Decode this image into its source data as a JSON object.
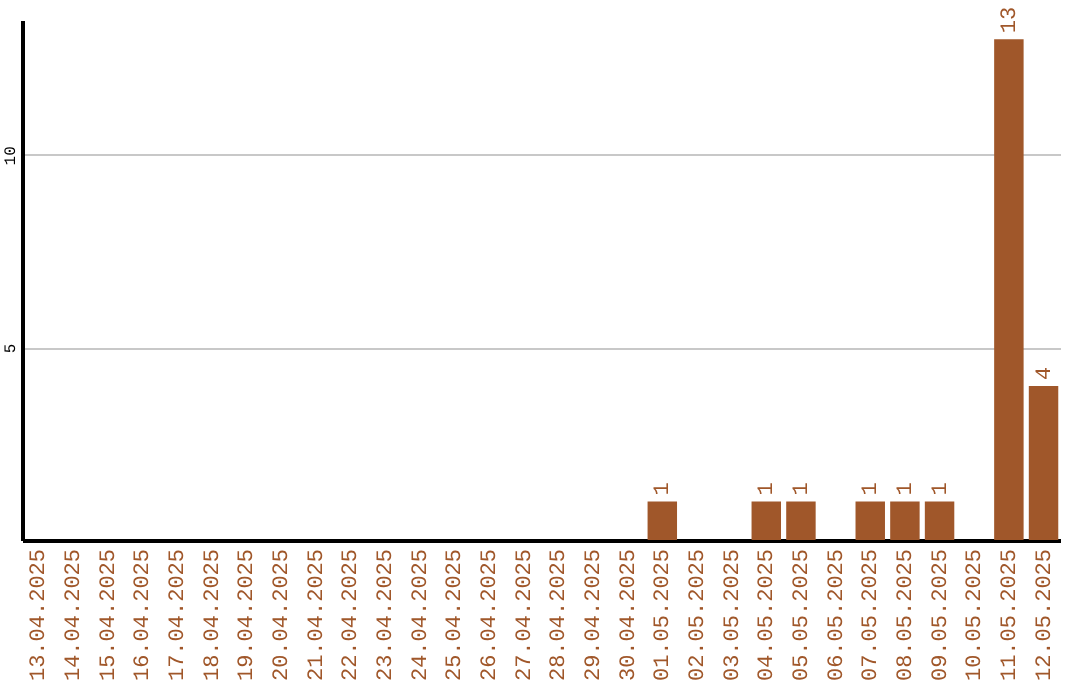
{
  "chart_data": {
    "type": "bar",
    "categories": [
      "13.04.2025",
      "14.04.2025",
      "15.04.2025",
      "16.04.2025",
      "17.04.2025",
      "18.04.2025",
      "19.04.2025",
      "20.04.2025",
      "21.04.2025",
      "22.04.2025",
      "23.04.2025",
      "24.04.2025",
      "25.04.2025",
      "26.04.2025",
      "27.04.2025",
      "28.04.2025",
      "29.04.2025",
      "30.04.2025",
      "01.05.2025",
      "02.05.2025",
      "03.05.2025",
      "04.05.2025",
      "05.05.2025",
      "06.05.2025",
      "07.05.2025",
      "08.05.2025",
      "09.05.2025",
      "10.05.2025",
      "11.05.2025",
      "12.05.2025"
    ],
    "values": [
      0,
      0,
      0,
      0,
      0,
      0,
      0,
      0,
      0,
      0,
      0,
      0,
      0,
      0,
      0,
      0,
      0,
      0,
      1,
      0,
      0,
      1,
      1,
      0,
      1,
      1,
      1,
      0,
      13,
      4
    ],
    "value_labels": [
      null,
      null,
      null,
      null,
      null,
      null,
      null,
      null,
      null,
      null,
      null,
      null,
      null,
      null,
      null,
      null,
      null,
      null,
      "1",
      null,
      null,
      "1",
      "1",
      null,
      "1",
      "1",
      "1",
      null,
      "13",
      "4"
    ],
    "color": "#a0572a",
    "ylim": [
      0,
      13.5
    ],
    "yticks": [
      5,
      10
    ],
    "grid": "y"
  }
}
